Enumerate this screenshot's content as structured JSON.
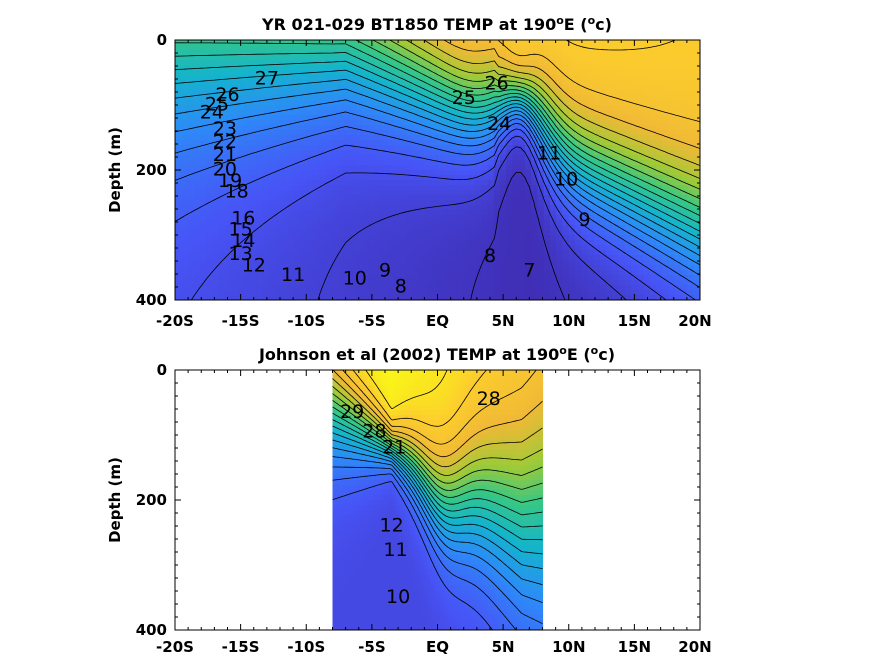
{
  "chart_data": [
    {
      "type": "heatmap",
      "title": "YR 021-029 BT1850 TEMP at 190",
      "title_sup": "o",
      "title_tail": "E (",
      "title_unit_sup": "o",
      "title_end": "c)",
      "ylabel": "Depth (m)",
      "xlim": [
        -20,
        20
      ],
      "ylim": [
        0,
        400
      ],
      "x_ticks": [
        "-20S",
        "-15S",
        "-10S",
        "-5S",
        "EQ",
        "5N",
        "10N",
        "15N",
        "20N"
      ],
      "y_ticks": [
        "0",
        "200",
        "400"
      ],
      "data_extent": [
        -20,
        20
      ],
      "color_range": [
        6,
        29
      ],
      "contour_levels": [
        7,
        8,
        9,
        10,
        11,
        12,
        13,
        14,
        15,
        16,
        17,
        18,
        19,
        20,
        21,
        22,
        23,
        24,
        25,
        26,
        27
      ],
      "contour_labels": [
        {
          "text": "27",
          "x": -13.0,
          "y": 60
        },
        {
          "text": "26",
          "x": -16.0,
          "y": 85
        },
        {
          "text": "25",
          "x": -16.8,
          "y": 100
        },
        {
          "text": "24",
          "x": -17.2,
          "y": 112
        },
        {
          "text": "23",
          "x": -16.2,
          "y": 138
        },
        {
          "text": "22",
          "x": -16.2,
          "y": 158
        },
        {
          "text": "21",
          "x": -16.2,
          "y": 178
        },
        {
          "text": "20",
          "x": -16.2,
          "y": 200
        },
        {
          "text": "19",
          "x": -15.8,
          "y": 218
        },
        {
          "text": "18",
          "x": -15.3,
          "y": 234
        },
        {
          "text": "16",
          "x": -14.8,
          "y": 275
        },
        {
          "text": "15",
          "x": -15.0,
          "y": 292
        },
        {
          "text": "14",
          "x": -14.8,
          "y": 310
        },
        {
          "text": "13",
          "x": -15.0,
          "y": 330
        },
        {
          "text": "12",
          "x": -14.0,
          "y": 348
        },
        {
          "text": "11",
          "x": -11.0,
          "y": 362
        },
        {
          "text": "10",
          "x": -6.3,
          "y": 368
        },
        {
          "text": "9",
          "x": -4.0,
          "y": 355
        },
        {
          "text": "8",
          "x": -2.8,
          "y": 380
        },
        {
          "text": "8",
          "x": 4.0,
          "y": 333
        },
        {
          "text": "7",
          "x": 7.0,
          "y": 355
        },
        {
          "text": "25",
          "x": 2.0,
          "y": 90
        },
        {
          "text": "26",
          "x": 4.5,
          "y": 68
        },
        {
          "text": "24",
          "x": 4.7,
          "y": 130
        },
        {
          "text": "11",
          "x": 8.5,
          "y": 175
        },
        {
          "text": "10",
          "x": 9.8,
          "y": 215
        },
        {
          "text": "9",
          "x": 11.2,
          "y": 278
        }
      ]
    },
    {
      "type": "heatmap",
      "title": "Johnson et al (2002) TEMP at 190",
      "title_sup": "o",
      "title_tail": "E (",
      "title_unit_sup": "o",
      "title_end": "c)",
      "ylabel": "Depth (m)",
      "xlim": [
        -20,
        20
      ],
      "ylim": [
        0,
        400
      ],
      "x_ticks": [
        "-20S",
        "-15S",
        "-10S",
        "-5S",
        "EQ",
        "5N",
        "10N",
        "15N",
        "20N"
      ],
      "y_ticks": [
        "0",
        "200",
        "400"
      ],
      "data_extent": [
        -8,
        8
      ],
      "color_range": [
        6,
        29
      ],
      "contour_levels": [
        10,
        11,
        12,
        13,
        14,
        15,
        16,
        17,
        18,
        19,
        20,
        21,
        22,
        23,
        24,
        25,
        26,
        27,
        28,
        29
      ],
      "contour_labels": [
        {
          "text": "29",
          "x": -6.5,
          "y": 65
        },
        {
          "text": "28",
          "x": -4.8,
          "y": 95
        },
        {
          "text": "28",
          "x": 3.9,
          "y": 45
        },
        {
          "text": "21",
          "x": -3.3,
          "y": 120
        },
        {
          "text": "12",
          "x": -3.5,
          "y": 240
        },
        {
          "text": "11",
          "x": -3.2,
          "y": 278
        },
        {
          "text": "10",
          "x": -3.0,
          "y": 350
        }
      ]
    }
  ]
}
